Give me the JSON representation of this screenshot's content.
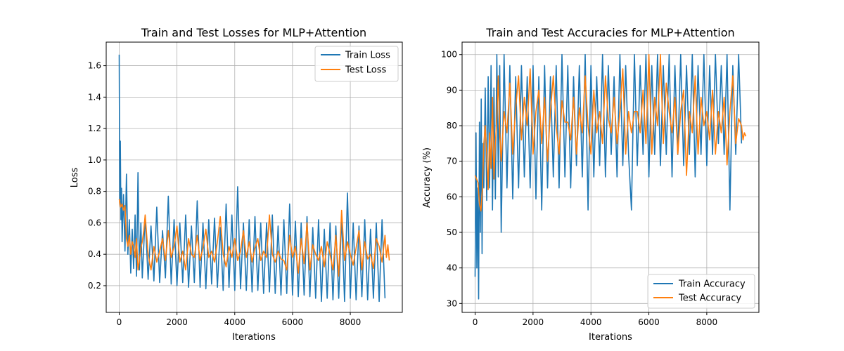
{
  "chart_data": [
    {
      "type": "line",
      "title": "Train and Test Losses for MLP+Attention",
      "xlabel": "Iterations",
      "ylabel": "Loss",
      "xlim": [
        -450,
        9800
      ],
      "ylim": [
        0.03,
        1.75
      ],
      "xticks": [
        0,
        2000,
        4000,
        6000,
        8000
      ],
      "xtick_labels": [
        "0",
        "2000",
        "4000",
        "6000",
        "8000"
      ],
      "yticks": [
        0.2,
        0.4,
        0.6,
        0.8,
        1.0,
        1.2,
        1.4,
        1.6
      ],
      "ytick_labels": [
        "0.2",
        "0.4",
        "0.6",
        "0.8",
        "1.0",
        "1.2",
        "1.4",
        "1.6"
      ],
      "grid": true,
      "legend": "top-right",
      "series": [
        {
          "name": "Train Loss",
          "color": "#1f77b4",
          "x": [
            0,
            20,
            40,
            60,
            80,
            100,
            150,
            200,
            250,
            300,
            350,
            400,
            450,
            500,
            550,
            600,
            650,
            700,
            750,
            800,
            900,
            1000,
            1100,
            1200,
            1300,
            1400,
            1500,
            1600,
            1700,
            1800,
            1900,
            2000,
            2100,
            2200,
            2300,
            2400,
            2500,
            2600,
            2700,
            2800,
            2900,
            3000,
            3100,
            3200,
            3300,
            3400,
            3500,
            3600,
            3700,
            3800,
            3900,
            4000,
            4100,
            4200,
            4300,
            4400,
            4500,
            4600,
            4700,
            4800,
            4900,
            5000,
            5100,
            5200,
            5300,
            5400,
            5500,
            5600,
            5700,
            5800,
            5900,
            6000,
            6100,
            6200,
            6300,
            6400,
            6500,
            6600,
            6700,
            6800,
            6900,
            7000,
            7100,
            7200,
            7300,
            7400,
            7500,
            7600,
            7700,
            7800,
            7900,
            8000,
            8100,
            8200,
            8300,
            8400,
            8500,
            8600,
            8700,
            8800,
            8900,
            9000,
            9100,
            9200
          ],
          "y": [
            1.67,
            0.75,
            1.12,
            0.62,
            0.82,
            0.48,
            0.78,
            0.42,
            0.91,
            0.4,
            0.62,
            0.28,
            0.56,
            0.31,
            0.65,
            0.26,
            0.92,
            0.3,
            0.6,
            0.25,
            0.64,
            0.24,
            0.58,
            0.23,
            0.7,
            0.22,
            0.55,
            0.25,
            0.77,
            0.21,
            0.62,
            0.2,
            0.6,
            0.22,
            0.65,
            0.19,
            0.58,
            0.22,
            0.74,
            0.19,
            0.6,
            0.18,
            0.62,
            0.21,
            0.63,
            0.19,
            0.57,
            0.17,
            0.72,
            0.19,
            0.65,
            0.17,
            0.83,
            0.18,
            0.6,
            0.17,
            0.62,
            0.16,
            0.64,
            0.17,
            0.6,
            0.15,
            0.6,
            0.16,
            0.65,
            0.15,
            0.58,
            0.14,
            0.62,
            0.15,
            0.72,
            0.14,
            0.61,
            0.13,
            0.6,
            0.14,
            0.64,
            0.13,
            0.57,
            0.12,
            0.62,
            0.1,
            0.56,
            0.12,
            0.6,
            0.11,
            0.58,
            0.12,
            0.64,
            0.1,
            0.79,
            0.12,
            0.6,
            0.11,
            0.58,
            0.13,
            0.62,
            0.11,
            0.56,
            0.12,
            0.6,
            0.1,
            0.62,
            0.12
          ]
        },
        {
          "name": "Test Loss",
          "color": "#ff7f0e",
          "x": [
            0,
            50,
            100,
            150,
            200,
            250,
            300,
            350,
            400,
            450,
            500,
            550,
            600,
            650,
            700,
            750,
            800,
            850,
            900,
            1000,
            1100,
            1200,
            1300,
            1400,
            1500,
            1600,
            1700,
            1800,
            1900,
            2000,
            2100,
            2200,
            2300,
            2400,
            2500,
            2600,
            2700,
            2800,
            2900,
            3000,
            3100,
            3200,
            3300,
            3400,
            3500,
            3600,
            3700,
            3800,
            3900,
            4000,
            4100,
            4200,
            4300,
            4400,
            4500,
            4600,
            4700,
            4800,
            4900,
            5000,
            5100,
            5200,
            5300,
            5400,
            5500,
            5600,
            5700,
            5800,
            5900,
            6000,
            6100,
            6200,
            6300,
            6400,
            6500,
            6600,
            6700,
            6800,
            6900,
            7000,
            7100,
            7200,
            7300,
            7400,
            7500,
            7600,
            7700,
            7800,
            7900,
            8000,
            8100,
            8200,
            8300,
            8400,
            8500,
            8600,
            8700,
            8800,
            8900,
            9000,
            9100,
            9200,
            9250,
            9300,
            9350
          ],
          "y": [
            0.75,
            0.7,
            0.72,
            0.68,
            0.71,
            0.5,
            0.45,
            0.52,
            0.4,
            0.48,
            0.45,
            0.38,
            0.5,
            0.3,
            0.36,
            0.44,
            0.48,
            0.55,
            0.65,
            0.4,
            0.3,
            0.45,
            0.35,
            0.42,
            0.5,
            0.36,
            0.55,
            0.38,
            0.45,
            0.58,
            0.35,
            0.42,
            0.3,
            0.5,
            0.4,
            0.38,
            0.52,
            0.36,
            0.44,
            0.56,
            0.38,
            0.42,
            0.35,
            0.48,
            0.64,
            0.4,
            0.32,
            0.45,
            0.38,
            0.5,
            0.36,
            0.42,
            0.55,
            0.38,
            0.48,
            0.35,
            0.44,
            0.5,
            0.36,
            0.42,
            0.38,
            0.65,
            0.4,
            0.35,
            0.42,
            0.37,
            0.36,
            0.3,
            0.52,
            0.38,
            0.45,
            0.28,
            0.5,
            0.34,
            0.6,
            0.3,
            0.46,
            0.4,
            0.36,
            0.45,
            0.32,
            0.48,
            0.4,
            0.3,
            0.52,
            0.26,
            0.68,
            0.36,
            0.48,
            0.4,
            0.33,
            0.44,
            0.55,
            0.3,
            0.48,
            0.37,
            0.4,
            0.31,
            0.5,
            0.45,
            0.35,
            0.52,
            0.38,
            0.46,
            0.36
          ]
        }
      ]
    },
    {
      "type": "line",
      "title": "Train and Test Accuracies for MLP+Attention",
      "xlabel": "Iterations",
      "ylabel": "Accuracy (%)",
      "xlim": [
        -450,
        9800
      ],
      "ylim": [
        27.5,
        103.5
      ],
      "xticks": [
        0,
        2000,
        4000,
        6000,
        8000
      ],
      "xtick_labels": [
        "0",
        "2000",
        "4000",
        "6000",
        "8000"
      ],
      "yticks": [
        30,
        40,
        50,
        60,
        70,
        80,
        90,
        100
      ],
      "ytick_labels": [
        "30",
        "40",
        "50",
        "60",
        "70",
        "80",
        "90",
        "100"
      ],
      "grid": true,
      "legend": "bottom-right",
      "series": [
        {
          "name": "Train Accuracy",
          "color": "#1f77b4",
          "x": [
            0,
            30,
            60,
            90,
            120,
            150,
            180,
            210,
            240,
            270,
            300,
            350,
            400,
            450,
            500,
            550,
            600,
            650,
            700,
            750,
            800,
            850,
            900,
            1000,
            1100,
            1200,
            1300,
            1400,
            1500,
            1600,
            1700,
            1800,
            1900,
            2000,
            2100,
            2200,
            2300,
            2400,
            2500,
            2600,
            2700,
            2800,
            2900,
            3000,
            3100,
            3200,
            3300,
            3400,
            3500,
            3600,
            3700,
            3800,
            3900,
            4000,
            4100,
            4200,
            4300,
            4400,
            4500,
            4600,
            4700,
            4800,
            4900,
            5000,
            5100,
            5200,
            5300,
            5400,
            5500,
            5600,
            5700,
            5800,
            5900,
            6000,
            6100,
            6200,
            6300,
            6400,
            6500,
            6600,
            6700,
            6800,
            6900,
            7000,
            7100,
            7200,
            7300,
            7400,
            7500,
            7600,
            7700,
            7800,
            7900,
            8000,
            8100,
            8200,
            8300,
            8400,
            8500,
            8600,
            8700,
            8800,
            8900,
            9000,
            9100,
            9200
          ],
          "y": [
            37.5,
            78.0,
            40.0,
            62.5,
            31.3,
            81.0,
            50.0,
            87.5,
            44.0,
            75.0,
            62.5,
            90.6,
            59.0,
            93.8,
            62.5,
            96.9,
            56.3,
            90.6,
            59.4,
            100.0,
            65.6,
            96.9,
            50.0,
            100.0,
            62.5,
            96.9,
            59.4,
            93.8,
            62.5,
            96.9,
            65.6,
            93.8,
            62.5,
            96.9,
            59.4,
            93.8,
            56.3,
            96.9,
            62.5,
            93.8,
            65.6,
            96.9,
            62.5,
            100.0,
            65.6,
            96.9,
            62.5,
            93.8,
            68.8,
            96.9,
            65.6,
            100.0,
            56.3,
            96.9,
            65.6,
            93.8,
            68.8,
            100.0,
            65.6,
            96.9,
            71.9,
            93.8,
            65.6,
            100.0,
            68.8,
            96.9,
            71.9,
            56.3,
            100.0,
            68.8,
            96.9,
            71.9,
            100.0,
            65.6,
            96.9,
            71.9,
            100.0,
            68.8,
            96.9,
            71.9,
            100.0,
            65.6,
            96.9,
            71.9,
            100.0,
            68.8,
            96.9,
            71.9,
            100.0,
            65.6,
            96.9,
            71.9,
            100.0,
            68.8,
            96.9,
            71.9,
            100.0,
            75.0,
            96.9,
            71.9,
            100.0,
            56.3,
            96.9,
            71.9,
            100.0,
            75.0
          ]
        },
        {
          "name": "Test Accuracy",
          "color": "#ff7f0e",
          "x": [
            0,
            50,
            100,
            150,
            200,
            250,
            300,
            350,
            400,
            450,
            500,
            550,
            600,
            650,
            700,
            750,
            800,
            850,
            900,
            1000,
            1100,
            1200,
            1300,
            1400,
            1500,
            1600,
            1700,
            1800,
            1900,
            2000,
            2100,
            2200,
            2300,
            2400,
            2500,
            2600,
            2700,
            2800,
            2900,
            3000,
            3100,
            3200,
            3300,
            3400,
            3500,
            3600,
            3700,
            3800,
            3900,
            4000,
            4100,
            4200,
            4300,
            4400,
            4500,
            4600,
            4700,
            4800,
            4900,
            5000,
            5100,
            5200,
            5300,
            5400,
            5500,
            5600,
            5700,
            5800,
            5900,
            6000,
            6100,
            6200,
            6300,
            6400,
            6500,
            6600,
            6700,
            6800,
            6900,
            7000,
            7100,
            7200,
            7300,
            7400,
            7500,
            7600,
            7700,
            7800,
            7900,
            8000,
            8100,
            8200,
            8300,
            8400,
            8500,
            8600,
            8700,
            8800,
            8900,
            9000,
            9100,
            9200,
            9250,
            9300,
            9350
          ],
          "y": [
            66.0,
            65.0,
            64.0,
            58.0,
            56.0,
            62.0,
            75.0,
            80.0,
            72.0,
            62.0,
            78.0,
            68.0,
            88.0,
            65.0,
            75.0,
            82.0,
            94.0,
            78.0,
            70.0,
            84.0,
            78.0,
            92.0,
            72.0,
            85.0,
            94.0,
            76.0,
            88.0,
            80.0,
            96.0,
            72.0,
            84.0,
            90.0,
            75.0,
            88.0,
            70.0,
            84.0,
            94.0,
            80.0,
            72.0,
            87.0,
            81.0,
            81.0,
            76.0,
            88.0,
            72.0,
            85.0,
            78.0,
            94.0,
            80.0,
            72.0,
            90.0,
            78.0,
            84.0,
            75.0,
            94.0,
            82.0,
            78.0,
            88.0,
            75.0,
            84.0,
            96.0,
            72.0,
            84.0,
            78.0,
            84.0,
            84.0,
            78.0,
            90.0,
            75.0,
            100.0,
            72.0,
            88.0,
            80.0,
            100.0,
            75.0,
            92.0,
            84.0,
            78.0,
            88.0,
            72.0,
            84.0,
            90.0,
            66.0,
            84.0,
            78.0,
            94.0,
            72.0,
            88.0,
            80.0,
            84.0,
            76.0,
            90.0,
            72.0,
            84.0,
            78.0,
            88.0,
            69.0,
            84.0,
            94.0,
            75.0,
            82.0,
            80.0,
            76.0,
            78.0,
            77.0
          ]
        }
      ]
    }
  ]
}
